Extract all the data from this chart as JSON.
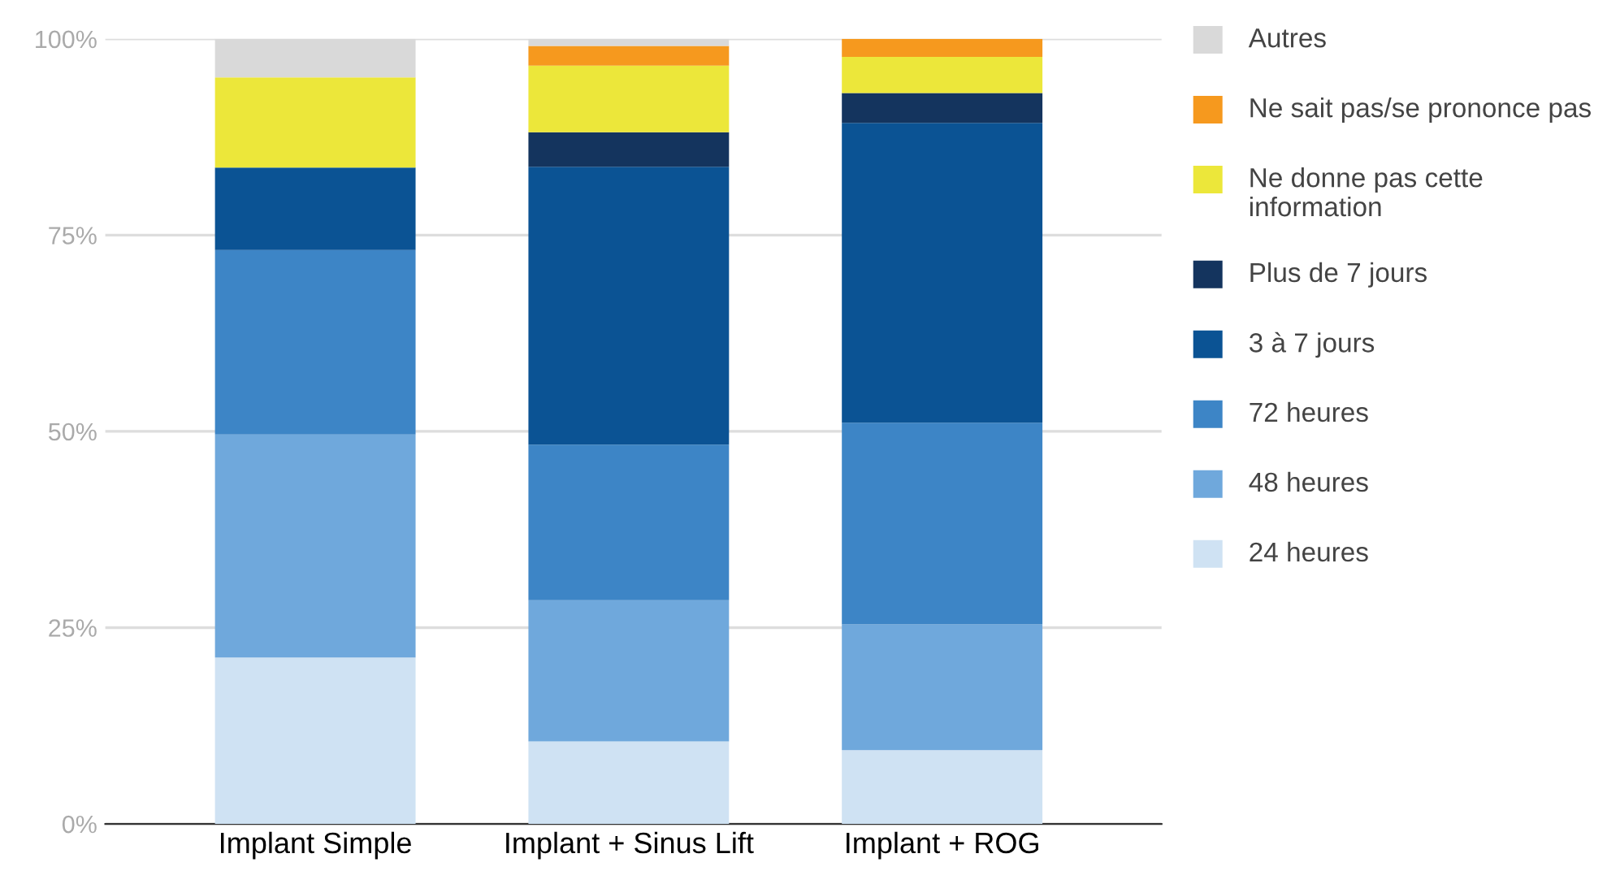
{
  "chart_data": {
    "type": "bar",
    "stacked": true,
    "categories": [
      "Implant Simple",
      "Implant + Sinus Lift",
      "Implant + ROG"
    ],
    "series": [
      {
        "name": "24 heures",
        "color": "#cfe2f3",
        "values": [
          21.2,
          10.5,
          9.4
        ]
      },
      {
        "name": "48 heures",
        "color": "#6fa8dc",
        "values": [
          28.4,
          18.0,
          16.0
        ]
      },
      {
        "name": "72 heures",
        "color": "#3d85c6",
        "values": [
          23.5,
          19.8,
          25.7
        ]
      },
      {
        "name": "3 à 7 jours",
        "color": "#0b5394",
        "values": [
          10.5,
          35.4,
          38.2
        ]
      },
      {
        "name": "Plus de 7 jours",
        "color": "#14345e",
        "values": [
          0,
          4.4,
          3.8
        ]
      },
      {
        "name": "Ne donne pas cette information",
        "color": "#ece73a",
        "values": [
          11.5,
          8.5,
          4.6
        ]
      },
      {
        "name": "Ne sait pas/se prononce pas",
        "color": "#f6991e",
        "values": [
          0,
          2.5,
          2.3
        ]
      },
      {
        "name": "Autres",
        "color": "#d9d9d9",
        "values": [
          4.9,
          0.9,
          0
        ]
      }
    ],
    "ylim": [
      0,
      100
    ],
    "yticks": [
      {
        "value": 0,
        "label": "0%"
      },
      {
        "value": 25,
        "label": "25%"
      },
      {
        "value": 50,
        "label": "50%"
      },
      {
        "value": 75,
        "label": "75%"
      },
      {
        "value": 100,
        "label": "100%"
      }
    ],
    "grid": "y",
    "legend": "right"
  }
}
